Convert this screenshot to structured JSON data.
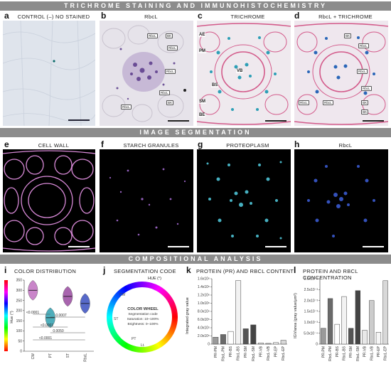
{
  "bands": {
    "top": "TRICHROME STAINING AND IMMUNOHISTOCHEMISTRY",
    "mid": "IMAGE SEGMENTATION",
    "bottom": "COMPOSITIONAL ANALYSIS"
  },
  "row1": [
    {
      "letter": "a",
      "title": "CONTROL (–) NO STAINED"
    },
    {
      "letter": "b",
      "title": "RbcL"
    },
    {
      "letter": "c",
      "title": "TRICHROME"
    },
    {
      "letter": "d",
      "title": "RbcL + TRICHROME"
    }
  ],
  "row2": [
    {
      "letter": "e",
      "title": "CELL WALL"
    },
    {
      "letter": "f",
      "title": "STARCH GRANULES"
    },
    {
      "letter": "g",
      "title": "PROTEOPLASM"
    },
    {
      "letter": "h",
      "title": "RbcL"
    }
  ],
  "annotations": {
    "rbcl": "RbcL",
    "bk": "BK",
    "tissues_c": [
      "AE",
      "PM",
      "VB",
      "BS",
      "SM",
      "BE"
    ]
  },
  "panel_i": {
    "letter": "i",
    "title": "COLOR DISTRIBUTION",
    "ylabel": "Hue (°)",
    "yticks": [
      "350",
      "300",
      "250",
      "200",
      "150",
      "100",
      "50",
      "0"
    ],
    "categories": [
      "CW",
      "PT",
      "ST",
      "RbcL"
    ],
    "pvalues": [
      "<0.0001",
      "0.0007",
      "<0.0001",
      "0.0050",
      "<0.0001"
    ]
  },
  "panel_j": {
    "letter": "j",
    "title": "SEGMENTATION CODE",
    "hue_label": "HUE (°)",
    "wheel_title": "COLOR WHEEL",
    "wheel_lines": [
      "Segmentation code",
      "Saturation: 10–100%",
      "Brightness: 0–100%"
    ],
    "arc_labels": [
      "CW",
      "ST",
      "PT",
      "Lt."
    ]
  },
  "panel_k": {
    "letter": "k",
    "title": "PROTEIN (PR) AND RBCL CONTENT",
    "ylabel": "Integrated gray value",
    "yticks": [
      "1.6x10⁶",
      "1.4x10⁶",
      "1.2x10⁶",
      "1.0x10⁶",
      "8.0x10⁵",
      "6.0x10⁵",
      "4.0x10⁵",
      "2.0x10⁵",
      "0"
    ]
  },
  "panel_l": {
    "letter": "l",
    "title": "PROTEIN AND RBCL CONCENTRATION",
    "ylabel": "IGV/area (gray value/μm²)",
    "yticks": [
      "3.0x10⁻³",
      "2.5x10⁻³",
      "2.0x10⁻³",
      "1.5x10⁻³",
      "1.0x10⁻³",
      "5.0x10⁻⁴",
      "0"
    ]
  },
  "chart_data": [
    {
      "type": "bar",
      "categories": [
        "PR-PM",
        "RbcL-PM",
        "PR-BS",
        "RbcL-BS",
        "PR-SM",
        "RbcL-SM",
        "PR-VB",
        "RbcL-VB",
        "PR-EP",
        "RbcL-EP"
      ],
      "values": [
        180000,
        250000,
        330000,
        1650000,
        400000,
        500000,
        30000,
        20000,
        40000,
        100000
      ],
      "ylabel": "Integrated gray value",
      "ylim": [
        0,
        1700000
      ],
      "colors": [
        "#9a9a9a",
        "#6a6a6a",
        "#ffffff",
        "#f2f2f2",
        "#555555",
        "#444444",
        "#e8e8e8",
        "#cccccc",
        "#f6f6f6",
        "#d8d8d8"
      ]
    },
    {
      "type": "bar",
      "categories": [
        "PR-PM",
        "RbcL-PM",
        "PR-BS",
        "RbcL-BS",
        "PR-SM",
        "RbcL-SM",
        "PR-VB",
        "RbcL-VB",
        "PR-EP",
        "RbcL-EP"
      ],
      "values": [
        0.0008,
        0.0023,
        0.001,
        0.0024,
        0.0008,
        0.0027,
        0.0007,
        0.0022,
        0.0006,
        0.0032
      ],
      "ylabel": "IGV/area (gray value/μm²)",
      "ylim": [
        0,
        0.0033
      ],
      "colors": [
        "#9a9a9a",
        "#6a6a6a",
        "#ffffff",
        "#f2f2f2",
        "#555555",
        "#444444",
        "#e8e8e8",
        "#cccccc",
        "#f6f6f6",
        "#d8d8d8"
      ]
    },
    {
      "type": "scatter",
      "categories": [
        "CW",
        "PT",
        "ST",
        "RbcL"
      ],
      "values": [
        300,
        165,
        270,
        235
      ],
      "ylabel": "Hue (°)",
      "ylim": [
        0,
        350
      ],
      "colors": [
        "#c070c0",
        "#30a0b0",
        "#9a4aa0",
        "#3a50c0"
      ]
    }
  ]
}
